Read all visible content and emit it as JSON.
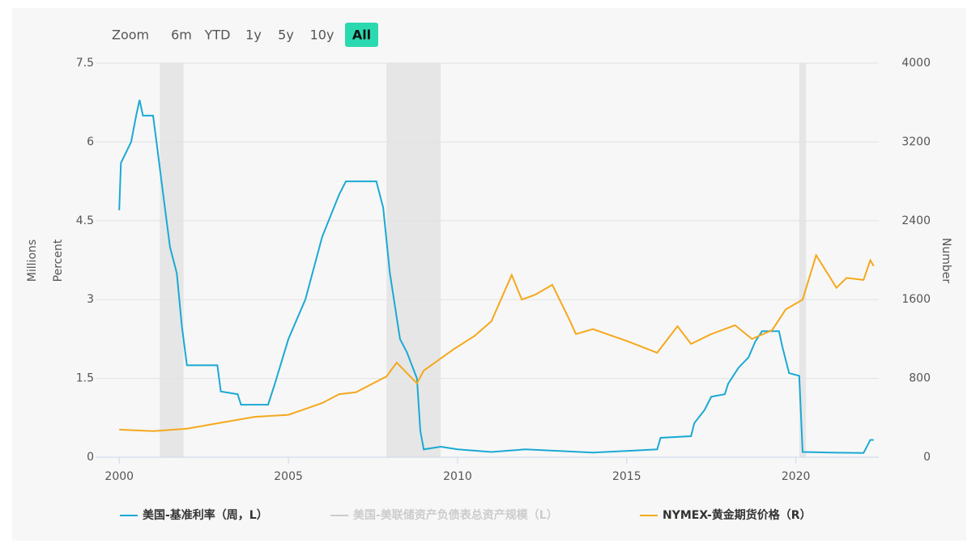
{
  "chart_data": {
    "type": "line",
    "range_buttons": [
      "Zoom",
      "6m",
      "YTD",
      "1y",
      "5y",
      "10y",
      "All"
    ],
    "selected_button": "All",
    "y_label_outer": "Millions",
    "y_label": "Percent",
    "y2_label": "Number",
    "xlim": [
      1999.3,
      2022.45
    ],
    "xticks": [
      2000,
      2005,
      2010,
      2015,
      2020
    ],
    "ylim": [
      0,
      7.5
    ],
    "yticks": [
      0,
      1.5,
      3,
      4.5,
      6,
      7.5
    ],
    "y2lim": [
      0,
      4000
    ],
    "y2ticks": [
      0,
      800,
      1600,
      2400,
      3200,
      4000
    ],
    "grid": true,
    "bands": [
      [
        2001.2,
        2001.9
      ],
      [
        2007.9,
        2009.5
      ],
      [
        2020.1,
        2020.3
      ]
    ],
    "band_color": "#e6e6e6",
    "legend": "bottom",
    "series": [
      {
        "name": "美国-基准利率（周，L）",
        "color": "#1aa9d4",
        "axis": "y",
        "visible": true,
        "x": [
          2000.0,
          2000.05,
          2000.2,
          2000.35,
          2000.5,
          2000.6,
          2000.7,
          2001.0,
          2001.1,
          2001.3,
          2001.5,
          2001.7,
          2001.85,
          2002.0,
          2002.9,
          2003.0,
          2003.5,
          2003.6,
          2004.4,
          2004.6,
          2005.0,
          2005.5,
          2006.0,
          2006.5,
          2006.7,
          2007.6,
          2007.8,
          2008.0,
          2008.3,
          2008.5,
          2008.8,
          2008.9,
          2009.0,
          2009.5,
          2010.0,
          2011.0,
          2012.0,
          2013.0,
          2014.0,
          2015.0,
          2015.9,
          2016.0,
          2016.9,
          2017.0,
          2017.3,
          2017.5,
          2017.9,
          2018.0,
          2018.3,
          2018.6,
          2018.8,
          2019.0,
          2019.5,
          2019.6,
          2019.8,
          2020.1,
          2020.2,
          2021.0,
          2022.0,
          2022.2,
          2022.3
        ],
        "values": [
          4.7,
          5.6,
          5.8,
          6.0,
          6.5,
          6.8,
          6.5,
          6.5,
          6.0,
          5.0,
          4.0,
          3.5,
          2.5,
          1.75,
          1.75,
          1.25,
          1.2,
          1.0,
          1.0,
          1.4,
          2.25,
          3.0,
          4.2,
          5.0,
          5.25,
          5.25,
          4.75,
          3.5,
          2.25,
          2.0,
          1.5,
          0.5,
          0.15,
          0.2,
          0.15,
          0.1,
          0.15,
          0.12,
          0.09,
          0.12,
          0.15,
          0.37,
          0.4,
          0.65,
          0.9,
          1.15,
          1.2,
          1.4,
          1.7,
          1.9,
          2.2,
          2.4,
          2.4,
          2.1,
          1.6,
          1.55,
          0.1,
          0.09,
          0.08,
          0.33,
          0.33
        ]
      },
      {
        "name": "美国-美联储资产负债表总资产规模（L）",
        "color": "#cccccc",
        "axis": "y",
        "visible": false,
        "x": [],
        "values": []
      },
      {
        "name": "NYMEX-黄金期货价格（R）",
        "color": "#f5a81c",
        "axis": "y2",
        "visible": true,
        "x": [
          2000.0,
          2001.0,
          2002.0,
          2003.0,
          2004.0,
          2005.0,
          2006.0,
          2006.5,
          2007.0,
          2007.9,
          2008.2,
          2008.8,
          2009.0,
          2009.9,
          2010.5,
          2011.0,
          2011.6,
          2011.9,
          2012.3,
          2012.8,
          2013.3,
          2013.5,
          2014.0,
          2015.0,
          2015.9,
          2016.5,
          2016.9,
          2017.5,
          2018.2,
          2018.7,
          2019.3,
          2019.7,
          2020.2,
          2020.6,
          2021.2,
          2021.5,
          2022.0,
          2022.2,
          2022.3
        ],
        "values": [
          280,
          265,
          290,
          350,
          410,
          430,
          550,
          640,
          660,
          820,
          960,
          750,
          880,
          1100,
          1230,
          1380,
          1850,
          1600,
          1650,
          1750,
          1400,
          1250,
          1300,
          1180,
          1060,
          1330,
          1150,
          1250,
          1340,
          1200,
          1290,
          1500,
          1600,
          2050,
          1720,
          1820,
          1800,
          2000,
          1940
        ]
      }
    ]
  }
}
